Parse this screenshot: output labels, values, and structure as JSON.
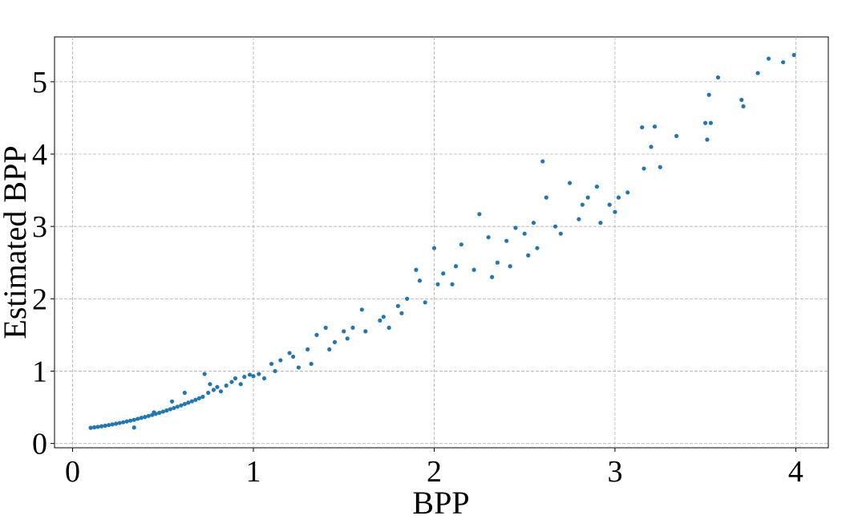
{
  "chart_data": {
    "type": "scatter",
    "x_label": "BPP",
    "y_label": "Estimated BPP",
    "color": "#1f77b4",
    "grid": true,
    "xlim": [
      -0.1,
      4.18
    ],
    "ylim": [
      -0.06,
      5.62
    ],
    "xticks": [
      0,
      1,
      2,
      3,
      4
    ],
    "yticks": [
      0,
      1,
      2,
      3,
      4,
      5
    ],
    "x": [
      0.1,
      0.12,
      0.14,
      0.16,
      0.18,
      0.2,
      0.22,
      0.24,
      0.26,
      0.28,
      0.3,
      0.32,
      0.34,
      0.36,
      0.38,
      0.4,
      0.42,
      0.44,
      0.46,
      0.48,
      0.5,
      0.52,
      0.54,
      0.56,
      0.58,
      0.6,
      0.62,
      0.64,
      0.66,
      0.68,
      0.7,
      0.72,
      0.75,
      0.78,
      0.8,
      0.82,
      0.85,
      0.88,
      0.9,
      0.93,
      0.95,
      0.98,
      1.0,
      1.03,
      1.06,
      0.76,
      0.73,
      0.34,
      0.62,
      0.55,
      0.45,
      1.1,
      1.15,
      1.2,
      1.25,
      1.3,
      1.35,
      1.4,
      1.45,
      1.5,
      1.55,
      1.6,
      1.7,
      1.75,
      1.8,
      1.85,
      1.9,
      1.95,
      2.0,
      2.05,
      2.1,
      2.15,
      2.25,
      2.3,
      2.35,
      2.4,
      2.45,
      2.5,
      2.55,
      2.6,
      2.62,
      2.7,
      2.75,
      2.8,
      2.85,
      2.9,
      2.92,
      3.0,
      3.07,
      3.15,
      3.16,
      3.2,
      3.22,
      3.25,
      3.34,
      3.5,
      3.51,
      3.52,
      3.57,
      3.7,
      3.71,
      3.79,
      3.85,
      3.93,
      3.99,
      3.53,
      1.12,
      1.22,
      1.32,
      1.42,
      1.52,
      1.62,
      1.72,
      1.82,
      1.92,
      2.02,
      2.12,
      2.22,
      2.32,
      2.42,
      2.52,
      2.57,
      2.67,
      2.82,
      2.97,
      3.02
    ],
    "y": [
      0.216,
      0.223,
      0.229,
      0.237,
      0.245,
      0.254,
      0.263,
      0.273,
      0.283,
      0.293,
      0.304,
      0.315,
      0.326,
      0.34,
      0.353,
      0.366,
      0.38,
      0.394,
      0.409,
      0.424,
      0.44,
      0.456,
      0.473,
      0.49,
      0.508,
      0.526,
      0.545,
      0.564,
      0.583,
      0.603,
      0.624,
      0.645,
      0.7,
      0.74,
      0.78,
      0.72,
      0.8,
      0.85,
      0.9,
      0.82,
      0.92,
      0.95,
      0.93,
      0.96,
      0.9,
      0.82,
      0.96,
      0.22,
      0.7,
      0.58,
      0.43,
      1.1,
      1.15,
      1.25,
      1.05,
      1.3,
      1.5,
      1.6,
      1.4,
      1.55,
      1.6,
      1.85,
      1.7,
      1.6,
      1.9,
      2.0,
      2.4,
      1.95,
      2.7,
      2.35,
      2.2,
      2.75,
      3.17,
      2.85,
      2.5,
      2.8,
      2.98,
      2.9,
      3.05,
      3.9,
      3.4,
      2.9,
      3.6,
      3.1,
      3.4,
      3.55,
      3.05,
      3.2,
      3.47,
      4.37,
      3.8,
      4.1,
      4.38,
      3.82,
      4.25,
      4.43,
      4.2,
      4.82,
      5.06,
      4.75,
      4.66,
      5.12,
      5.32,
      5.27,
      5.37,
      4.43,
      1.0,
      1.2,
      1.1,
      1.3,
      1.45,
      1.55,
      1.75,
      1.8,
      2.25,
      2.2,
      2.45,
      2.4,
      2.3,
      2.45,
      2.6,
      2.7,
      3.0,
      3.3,
      3.3,
      3.4
    ]
  }
}
